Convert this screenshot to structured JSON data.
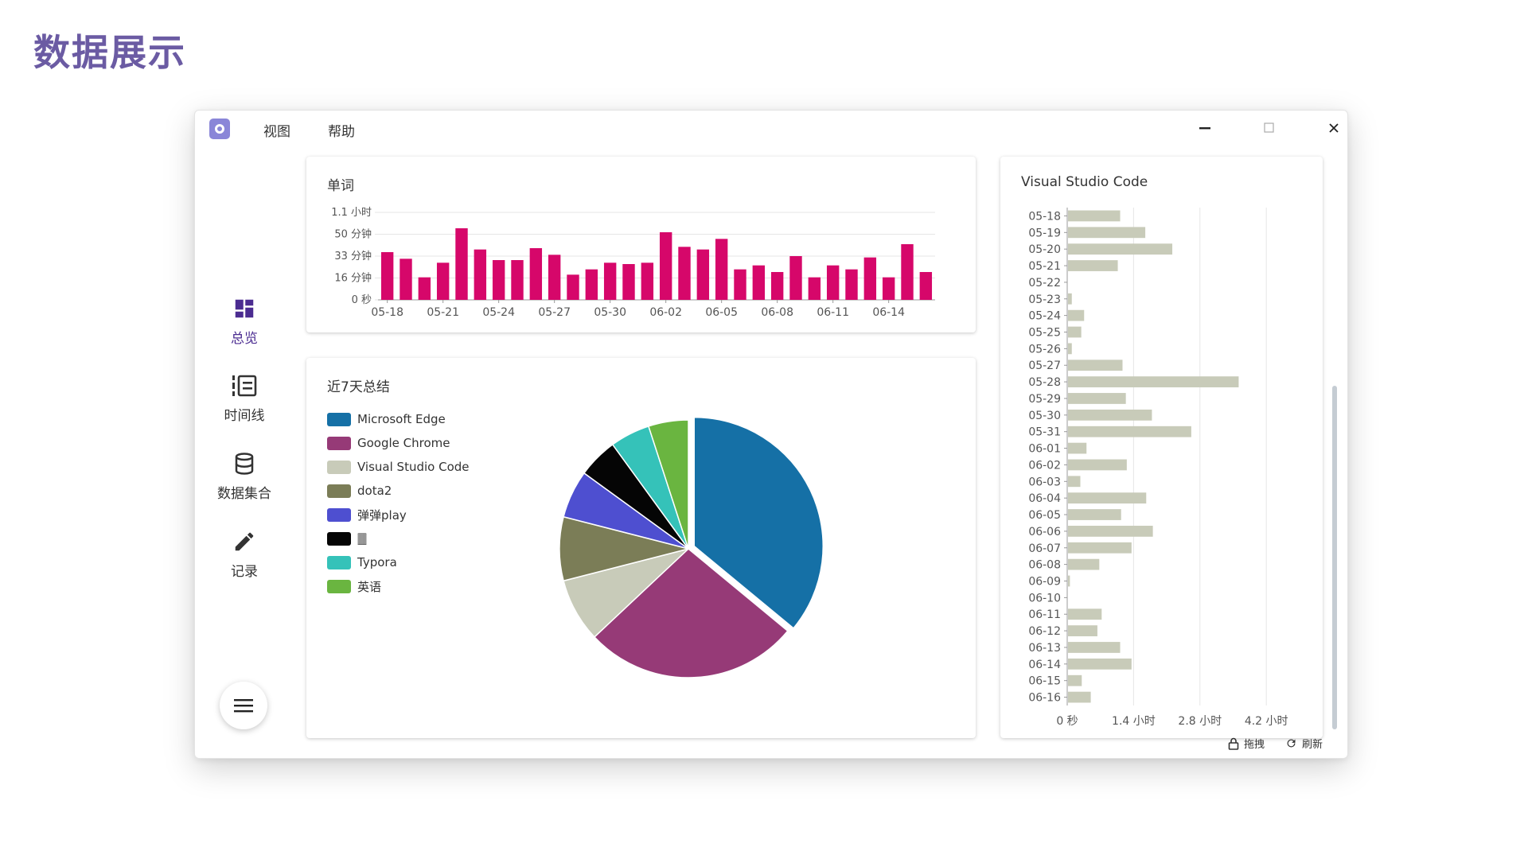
{
  "slide_title": "数据展示",
  "menu": [
    "视图",
    "帮助"
  ],
  "window_controls": {
    "minimize": "minimize-icon",
    "maximize": "maximize-icon",
    "close": "close-icon"
  },
  "sidebar": {
    "items": [
      {
        "label": "总览",
        "icon": "dashboard-icon",
        "active": true
      },
      {
        "label": "时间线",
        "icon": "timeline-icon",
        "active": false
      },
      {
        "label": "数据集合",
        "icon": "database-icon",
        "active": false
      },
      {
        "label": "记录",
        "icon": "pencil-icon",
        "active": false
      }
    ],
    "menu_button_icon": "hamburger-menu-icon"
  },
  "footer": {
    "lock_label": "拖拽",
    "refresh_label": "刷新"
  },
  "colors": {
    "accent": "#4b2c91",
    "bar": "#d6076a",
    "hbar": "#c8cbb9"
  },
  "chart_data": [
    {
      "type": "bar",
      "title": "单词",
      "x": [
        "05-18",
        "05-19",
        "05-20",
        "05-21",
        "05-22",
        "05-23",
        "05-24",
        "05-25",
        "05-26",
        "05-27",
        "05-28",
        "05-29",
        "05-30",
        "05-31",
        "06-01",
        "06-02",
        "06-03",
        "06-04",
        "06-05",
        "06-06",
        "06-07",
        "06-08",
        "06-09",
        "06-10",
        "06-11",
        "06-12",
        "06-13",
        "06-14",
        "06-15",
        "06-16"
      ],
      "x_tick_labels": [
        "05-18",
        "05-21",
        "05-24",
        "05-27",
        "05-30",
        "06-02",
        "06-05",
        "06-08",
        "06-11",
        "06-14"
      ],
      "values": [
        36,
        31,
        17,
        28,
        54,
        38,
        30,
        30,
        39,
        34,
        19,
        23,
        28,
        27,
        28,
        51,
        40,
        38,
        46,
        23,
        26,
        21,
        33,
        17,
        26,
        23,
        32,
        17,
        42,
        21
      ],
      "value_unit": "minutes",
      "y_ticks": [
        0,
        16.5,
        33,
        49.5,
        66
      ],
      "y_tick_labels": [
        "0 秒",
        "16 分钟",
        "33 分钟",
        "50 分钟",
        "1.1 小时"
      ],
      "ylim": [
        0,
        66
      ],
      "color": "#d6076a"
    },
    {
      "type": "pie",
      "title": "近7天总结",
      "legend_position": "left",
      "slices": [
        {
          "name": "Microsoft Edge",
          "value": 36,
          "color": "#1570a6"
        },
        {
          "name": "Google Chrome",
          "value": 27,
          "color": "#963a77"
        },
        {
          "name": "Visual Studio Code",
          "value": 8,
          "color": "#c8cbb9"
        },
        {
          "name": "dota2",
          "value": 8,
          "color": "#7b7d57"
        },
        {
          "name": "弹弹play",
          "value": 6,
          "color": "#4e4fd0"
        },
        {
          "name": "🀫",
          "value": 5,
          "color": "#050505"
        },
        {
          "name": "Typora",
          "value": 5,
          "color": "#35c2b9"
        },
        {
          "name": "英语",
          "value": 5,
          "color": "#6ab540"
        }
      ]
    },
    {
      "type": "bar",
      "orientation": "horizontal",
      "title": "Visual Studio Code",
      "categories": [
        "05-18",
        "05-19",
        "05-20",
        "05-21",
        "05-22",
        "05-23",
        "05-24",
        "05-25",
        "05-26",
        "05-27",
        "05-28",
        "05-29",
        "05-30",
        "05-31",
        "06-01",
        "06-02",
        "06-03",
        "06-04",
        "06-05",
        "06-06",
        "06-07",
        "06-08",
        "06-09",
        "06-10",
        "06-11",
        "06-12",
        "06-13",
        "06-14",
        "06-15",
        "06-16"
      ],
      "values": [
        1.1,
        1.63,
        2.2,
        1.05,
        0,
        0.08,
        0.34,
        0.28,
        0.08,
        1.15,
        3.6,
        1.22,
        1.77,
        2.6,
        0.39,
        1.24,
        0.26,
        1.65,
        1.12,
        1.79,
        1.34,
        0.66,
        0.04,
        0,
        0.71,
        0.62,
        1.1,
        1.34,
        0.29,
        0.48
      ],
      "value_unit": "hours",
      "x_ticks": [
        0,
        1.4,
        2.8,
        4.2
      ],
      "x_tick_labels": [
        "0 秒",
        "1.4 小时",
        "2.8 小时",
        "4.2 小时"
      ],
      "xlim": [
        0,
        4.6
      ],
      "color": "#c8cbb9"
    }
  ]
}
